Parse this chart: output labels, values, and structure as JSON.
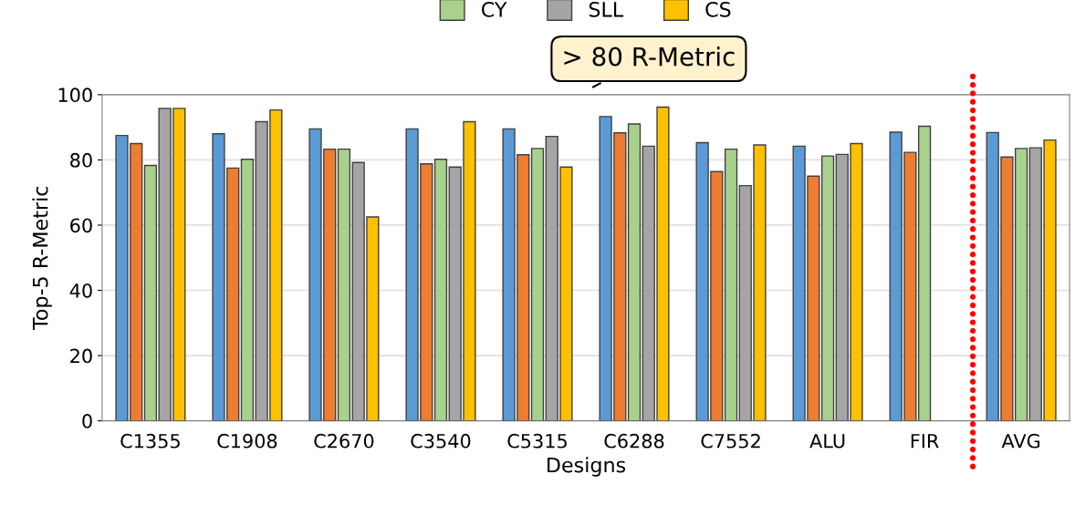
{
  "chart_data": {
    "type": "bar",
    "xlabel": "Designs",
    "ylabel": "Top-5 R-Metric",
    "categories": [
      "C1355",
      "C1908",
      "C2670",
      "C3540",
      "C5315",
      "C6288",
      "C7552",
      "ALU",
      "FIR",
      "AVG"
    ],
    "series": [
      {
        "color": "#5b9bd5",
        "values": [
          87.5,
          88,
          89.5,
          89.5,
          89.5,
          93.3,
          85.3,
          84.2,
          88.5,
          88.4
        ]
      },
      {
        "color": "#ed7d31",
        "values": [
          85,
          77.5,
          83.3,
          78.8,
          81.6,
          88.3,
          76.4,
          75,
          82.3,
          80.9
        ]
      },
      {
        "name": "CY",
        "color": "#a9d18e",
        "values": [
          78.3,
          80.2,
          83.3,
          80.2,
          83.5,
          91,
          83.3,
          81.2,
          90.3,
          83.5
        ]
      },
      {
        "name": "SLL",
        "color": "#a5a5a5",
        "values": [
          95.8,
          91.7,
          79.2,
          77.8,
          87.2,
          84.2,
          72.1,
          81.7,
          null,
          83.7
        ]
      },
      {
        "name": "CS",
        "color": "#ffc000",
        "values": [
          95.8,
          95.3,
          62.5,
          91.7,
          77.8,
          96.2,
          84.6,
          85,
          null,
          86.1
        ]
      }
    ],
    "ylim": [
      0,
      100
    ],
    "yticks": [
      0,
      20,
      40,
      60,
      80,
      100
    ],
    "grid": "y",
    "legend": "top",
    "annotations": [
      "> 80 R-Metric"
    ]
  }
}
